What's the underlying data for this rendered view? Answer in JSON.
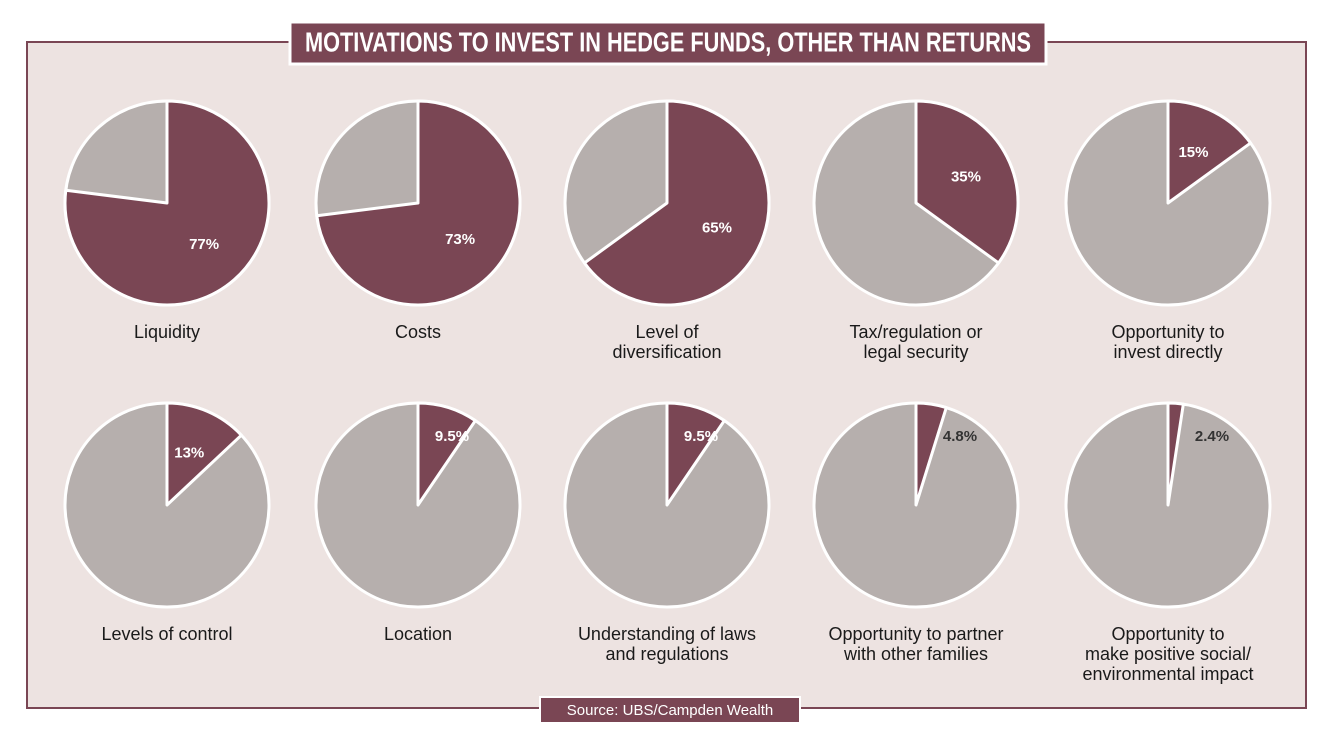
{
  "title": "MOTIVATIONS TO INVEST IN HEDGE FUNDS, OTHER THAN RETURNS",
  "source": "Source: UBS/Campden Wealth",
  "colors": {
    "slice": "#7a4654",
    "rest": "#b6afad"
  },
  "chart_data": [
    {
      "type": "pie",
      "label": [
        "Liquidity"
      ],
      "values": [
        77
      ],
      "value_labels": [
        "77%"
      ]
    },
    {
      "type": "pie",
      "label": [
        "Costs"
      ],
      "values": [
        73
      ],
      "value_labels": [
        "73%"
      ]
    },
    {
      "type": "pie",
      "label": [
        "Level of",
        "diversification"
      ],
      "values": [
        65
      ],
      "value_labels": [
        "65%"
      ]
    },
    {
      "type": "pie",
      "label": [
        "Tax/regulation or",
        "legal security"
      ],
      "values": [
        35
      ],
      "value_labels": [
        "35%"
      ]
    },
    {
      "type": "pie",
      "label": [
        "Opportunity to",
        "invest directly"
      ],
      "values": [
        15
      ],
      "value_labels": [
        "15%"
      ]
    },
    {
      "type": "pie",
      "label": [
        "Levels of control"
      ],
      "values": [
        13
      ],
      "value_labels": [
        "13%"
      ]
    },
    {
      "type": "pie",
      "label": [
        "Location"
      ],
      "values": [
        9.5
      ],
      "value_labels": [
        "9.5%"
      ]
    },
    {
      "type": "pie",
      "label": [
        "Understanding of laws",
        "and regulations"
      ],
      "values": [
        9.5
      ],
      "value_labels": [
        "9.5%"
      ]
    },
    {
      "type": "pie",
      "label": [
        "Opportunity to partner",
        "with other families"
      ],
      "values": [
        4.8
      ],
      "value_labels": [
        "4.8%"
      ]
    },
    {
      "type": "pie",
      "label": [
        "Opportunity to",
        "make positive social/",
        "environmental impact"
      ],
      "values": [
        2.4
      ],
      "value_labels": [
        "2.4%"
      ]
    }
  ]
}
